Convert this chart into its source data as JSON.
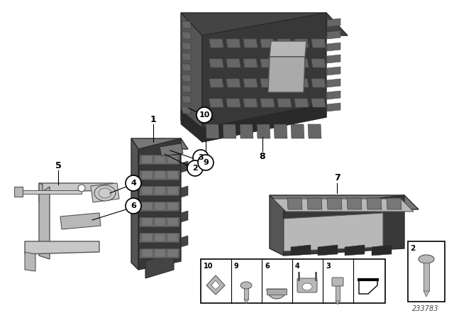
{
  "bg_color": "#ffffff",
  "diagram_number": "233783",
  "dark1": "#2a2a2a",
  "dark2": "#383838",
  "dark3": "#444444",
  "mid1": "#555555",
  "mid2": "#666666",
  "mid3": "#777777",
  "light1": "#aaaaaa",
  "light2": "#b8b8b8",
  "light3": "#cccccc",
  "silver": "#c8c8c8",
  "line_color": "#000000",
  "label_fontsize": 8.5,
  "circle_labels": [
    "2",
    "3",
    "4",
    "6",
    "9",
    "10"
  ],
  "plain_labels": [
    "1",
    "5",
    "7",
    "8"
  ]
}
